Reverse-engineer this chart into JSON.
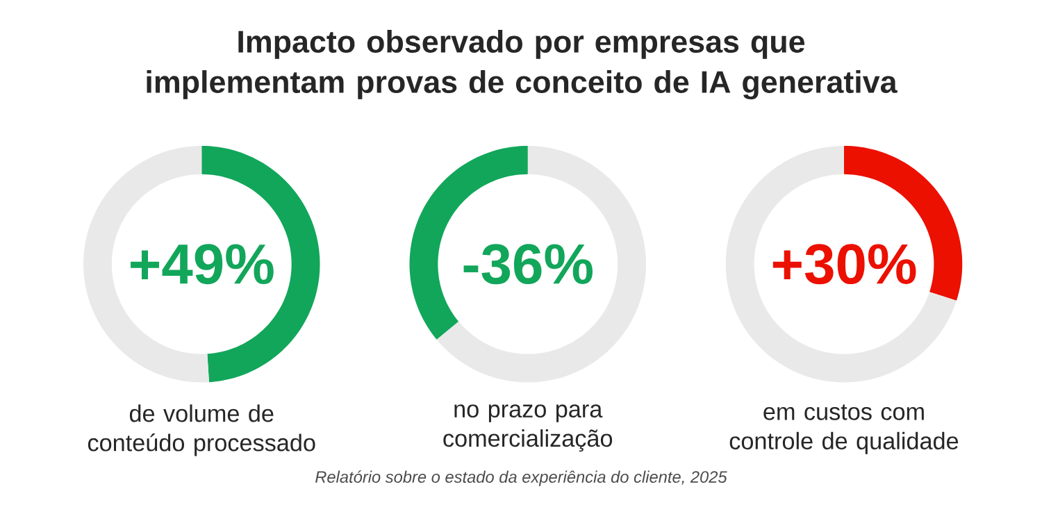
{
  "chart_data": [
    {
      "type": "donut",
      "title": "Impacto observado por empresas que implementam provas de conceito de IA generativa",
      "annotations": [
        "+49%"
      ],
      "categories": [
        null,
        null
      ],
      "values": [
        49,
        51
      ],
      "colors": [
        "#12a65a",
        "#e9e9e9"
      ],
      "xlabel": "de volume de conteúdo processado"
    },
    {
      "type": "donut",
      "annotations": [
        "-36%",
        "Relatório sobre o estado da experiência do cliente, 2025"
      ],
      "categories": [
        null,
        null
      ],
      "values": [
        64,
        36
      ],
      "colors": [
        "#e9e9e9",
        "#12a65a"
      ],
      "xlabel": "no prazo para comercialização"
    },
    {
      "type": "donut",
      "annotations": [
        "+30%"
      ],
      "categories": [
        null,
        null
      ],
      "values": [
        30,
        70
      ],
      "colors": [
        "#eb1000",
        "#e9e9e9"
      ],
      "xlabel": "em custos com controle de qualidade"
    }
  ]
}
